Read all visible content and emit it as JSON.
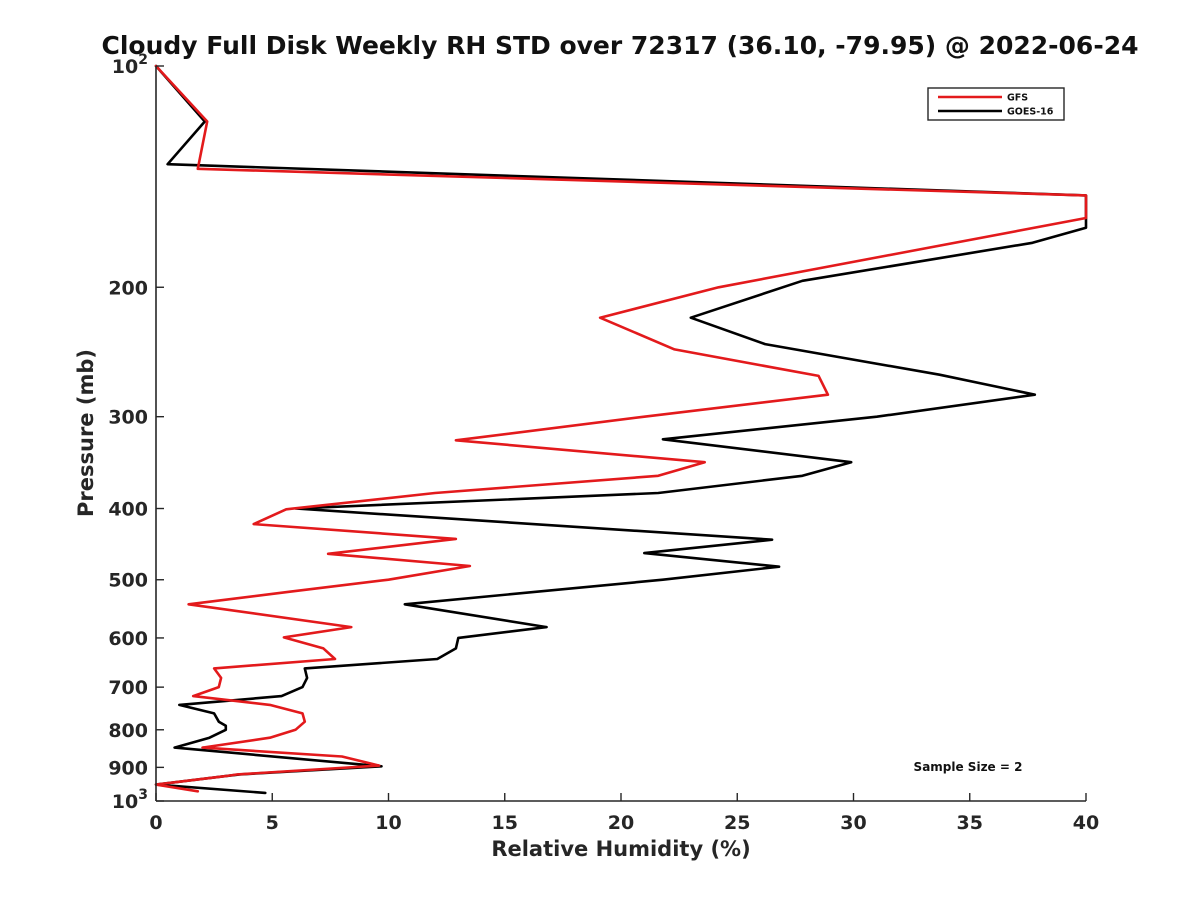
{
  "chart_data": {
    "type": "line",
    "title": "Cloudy Full Disk Weekly RH STD over 72317 (36.10, -79.95) @ 2022-06-24",
    "xlabel": "Relative Humidity (%)",
    "ylabel": "Pressure (mb)",
    "xlim": [
      0,
      40
    ],
    "ylim": [
      100,
      1000
    ],
    "yscale": "log",
    "y_reversed": true,
    "grid": false,
    "legend_placement": "top-right",
    "x_ticks": [
      "0",
      "5",
      "10",
      "15",
      "20",
      "25",
      "30",
      "35",
      "40"
    ],
    "y_ticks": [
      {
        "value": 100,
        "base": "10",
        "exp": "2"
      },
      {
        "value": 200,
        "label": "200"
      },
      {
        "value": 300,
        "label": "300"
      },
      {
        "value": 400,
        "label": "400"
      },
      {
        "value": 500,
        "label": "500"
      },
      {
        "value": 600,
        "label": "600"
      },
      {
        "value": 700,
        "label": "700"
      },
      {
        "value": 800,
        "label": "800"
      },
      {
        "value": 900,
        "label": "900"
      },
      {
        "value": 1000,
        "base": "10",
        "exp": "3"
      }
    ],
    "series": [
      {
        "name": "GFS",
        "color": "#e31a1c",
        "points": [
          [
            0.0,
            100
          ],
          [
            2.2,
            119
          ],
          [
            1.8,
            138
          ],
          [
            40.0,
            150
          ],
          [
            40.0,
            161
          ],
          [
            24.2,
            200
          ],
          [
            19.1,
            220
          ],
          [
            22.3,
            243
          ],
          [
            28.5,
            264
          ],
          [
            28.9,
            280
          ],
          [
            21.0,
            300
          ],
          [
            12.9,
            323
          ],
          [
            23.6,
            346
          ],
          [
            21.6,
            361
          ],
          [
            12.0,
            381
          ],
          [
            5.6,
            401
          ],
          [
            4.2,
            420
          ],
          [
            12.9,
            440
          ],
          [
            7.4,
            461
          ],
          [
            13.5,
            479
          ],
          [
            10.0,
            500
          ],
          [
            5.8,
            519
          ],
          [
            1.4,
            540
          ],
          [
            8.4,
            580
          ],
          [
            5.5,
            599
          ],
          [
            7.2,
            620
          ],
          [
            7.7,
            641
          ],
          [
            2.5,
            660
          ],
          [
            2.8,
            680
          ],
          [
            2.7,
            700
          ],
          [
            1.6,
            720
          ],
          [
            4.9,
            740
          ],
          [
            6.3,
            760
          ],
          [
            6.4,
            780
          ],
          [
            6.0,
            800
          ],
          [
            4.9,
            820
          ],
          [
            2.0,
            846
          ],
          [
            8.0,
            870
          ],
          [
            9.6,
            895
          ],
          [
            3.5,
            920
          ],
          [
            3.0,
            925
          ],
          [
            0.0,
            950
          ],
          [
            1.8,
            970
          ]
        ]
      },
      {
        "name": "GOES-16",
        "color": "#000000",
        "points": [
          [
            0.0,
            100
          ],
          [
            2.1,
            119
          ],
          [
            0.5,
            136
          ],
          [
            40.0,
            150
          ],
          [
            40.0,
            166
          ],
          [
            37.7,
            174
          ],
          [
            27.8,
            196
          ],
          [
            23.0,
            220
          ],
          [
            26.2,
            239
          ],
          [
            33.7,
            263
          ],
          [
            37.8,
            280
          ],
          [
            31.0,
            300
          ],
          [
            21.8,
            322
          ],
          [
            29.9,
            346
          ],
          [
            27.8,
            361
          ],
          [
            21.6,
            381
          ],
          [
            6.0,
            400
          ],
          [
            26.5,
            441
          ],
          [
            21.0,
            460
          ],
          [
            26.8,
            480
          ],
          [
            21.8,
            500
          ],
          [
            10.7,
            540
          ],
          [
            16.8,
            580
          ],
          [
            13.0,
            600
          ],
          [
            12.9,
            620
          ],
          [
            12.1,
            641
          ],
          [
            6.4,
            660
          ],
          [
            6.5,
            680
          ],
          [
            6.3,
            700
          ],
          [
            5.4,
            720
          ],
          [
            1.0,
            740
          ],
          [
            2.5,
            760
          ],
          [
            2.7,
            780
          ],
          [
            3.0,
            790
          ],
          [
            3.0,
            800
          ],
          [
            2.3,
            820
          ],
          [
            0.8,
            846
          ],
          [
            9.7,
            897
          ],
          [
            3.6,
            920
          ],
          [
            3.0,
            925
          ],
          [
            0.0,
            950
          ],
          [
            4.7,
            975
          ]
        ]
      }
    ],
    "annotations": [
      "Sample Size = 2"
    ]
  }
}
